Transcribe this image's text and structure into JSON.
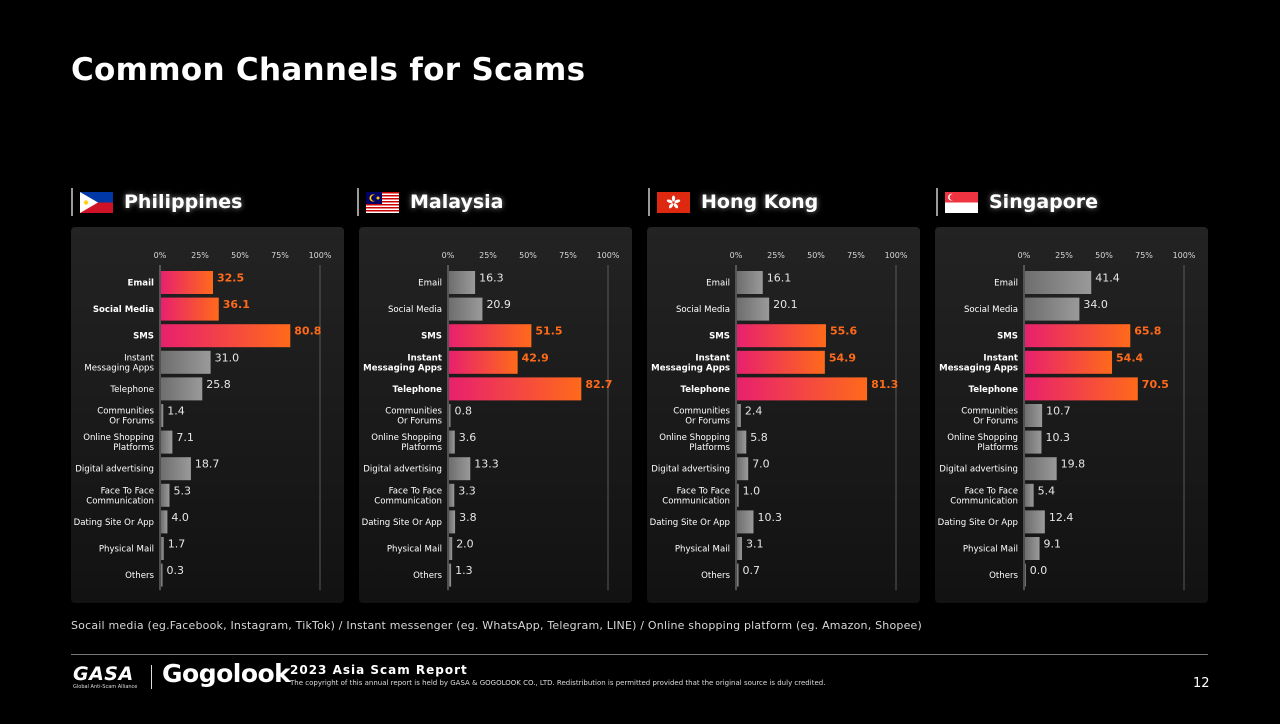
{
  "page": {
    "title": "Common Channels for Scams",
    "footnote": "Socail media (eg.Facebook, Instagram, TikTok) / Instant messenger (eg. WhatsApp, Telegram, LINE) / Online shopping platform (eg. Amazon, Shopee)",
    "report_title": "2023 Asia Scam Report",
    "copyright": "The copyright of this annual report is held by GASA & GOGOLOOK CO., LTD. Redistribution is permitted provided that the original source is duly credited.",
    "page_number": "12",
    "logos": {
      "gasa": "GASA",
      "gasa_tagline": "Global Anti-Scam Alliance",
      "gogolook": "Gogolook"
    }
  },
  "colors": {
    "background": "#000000",
    "highlight_start": "#e8206e",
    "highlight_end": "#ff6a1a",
    "gray_bar": "#9a9a9a"
  },
  "chart_data": [
    {
      "type": "bar",
      "orientation": "horizontal",
      "country": "Philippines",
      "flag": "philippines-flag",
      "xlim": [
        0,
        100
      ],
      "x_ticks": [
        "0%",
        "25%",
        "50%",
        "75%",
        "100%"
      ],
      "categories": [
        "Email",
        "Social Media",
        "SMS",
        "Instant Messaging Apps",
        "Telephone",
        "Communities Or Forums",
        "Online Shopping Platforms",
        "Digital advertising",
        "Face To Face Communication",
        "Dating Site Or App",
        "Physical Mail",
        "Others"
      ],
      "values": [
        32.5,
        36.1,
        80.8,
        31.0,
        25.8,
        1.4,
        7.1,
        18.7,
        5.3,
        4.0,
        1.7,
        0.3
      ],
      "value_labels": [
        "32.5",
        "36.1",
        "80.8",
        "31.0",
        "25.8",
        "1.4",
        "7.1",
        "18.7",
        "5.3",
        "4.0",
        "1.7",
        "0.3"
      ],
      "highlighted": [
        true,
        true,
        true,
        false,
        false,
        false,
        false,
        false,
        false,
        false,
        false,
        false
      ]
    },
    {
      "type": "bar",
      "orientation": "horizontal",
      "country": "Malaysia",
      "flag": "malaysia-flag",
      "xlim": [
        0,
        100
      ],
      "x_ticks": [
        "0%",
        "25%",
        "50%",
        "75%",
        "100%"
      ],
      "categories": [
        "Email",
        "Social Media",
        "SMS",
        "Instant Messaging Apps",
        "Telephone",
        "Communities Or Forums",
        "Online Shopping Platforms",
        "Digital advertising",
        "Face To Face Communication",
        "Dating Site Or App",
        "Physical Mail",
        "Others"
      ],
      "values": [
        16.3,
        20.9,
        51.5,
        42.9,
        82.7,
        0.8,
        3.6,
        13.3,
        3.3,
        3.8,
        2.0,
        1.3
      ],
      "value_labels": [
        "16.3",
        "20.9",
        "51.5",
        "42.9",
        "82.7",
        "0.8",
        "3.6",
        "13.3",
        "3.3",
        "3.8",
        "2.0",
        "1.3"
      ],
      "highlighted": [
        false,
        false,
        true,
        true,
        true,
        false,
        false,
        false,
        false,
        false,
        false,
        false
      ]
    },
    {
      "type": "bar",
      "orientation": "horizontal",
      "country": "Hong Kong",
      "flag": "hong-kong-flag",
      "xlim": [
        0,
        100
      ],
      "x_ticks": [
        "0%",
        "25%",
        "50%",
        "75%",
        "100%"
      ],
      "categories": [
        "Email",
        "Social Media",
        "SMS",
        "Instant Messaging Apps",
        "Telephone",
        "Communities Or Forums",
        "Online Shopping Platforms",
        "Digital advertising",
        "Face To Face Communication",
        "Dating Site Or App",
        "Physical Mail",
        "Others"
      ],
      "values": [
        16.1,
        20.1,
        55.6,
        54.9,
        81.3,
        2.4,
        5.8,
        7.0,
        1.0,
        10.3,
        3.1,
        0.7
      ],
      "value_labels": [
        "16.1",
        "20.1",
        "55.6",
        "54.9",
        "81.3",
        "2.4",
        "5.8",
        "7.0",
        "1.0",
        "10.3",
        "3.1",
        "0.7"
      ],
      "highlighted": [
        false,
        false,
        true,
        true,
        true,
        false,
        false,
        false,
        false,
        false,
        false,
        false
      ]
    },
    {
      "type": "bar",
      "orientation": "horizontal",
      "country": "Singapore",
      "flag": "singapore-flag",
      "xlim": [
        0,
        100
      ],
      "x_ticks": [
        "0%",
        "25%",
        "50%",
        "75%",
        "100%"
      ],
      "categories": [
        "Email",
        "Social Media",
        "SMS",
        "Instant Messaging Apps",
        "Telephone",
        "Communities Or Forums",
        "Online Shopping Platforms",
        "Digital advertising",
        "Face To Face Communication",
        "Dating Site Or App",
        "Physical Mail",
        "Others"
      ],
      "values": [
        41.4,
        34.0,
        65.8,
        54.4,
        70.5,
        10.7,
        10.3,
        19.8,
        5.4,
        12.4,
        9.1,
        0.0
      ],
      "value_labels": [
        "41.4",
        "34.0",
        "65.8",
        "54.4",
        "70.5",
        "10.7",
        "10.3",
        "19.8",
        "5.4",
        "12.4",
        "9.1",
        "0.0"
      ],
      "highlighted": [
        false,
        false,
        true,
        true,
        true,
        false,
        false,
        false,
        false,
        false,
        false,
        false
      ]
    }
  ]
}
